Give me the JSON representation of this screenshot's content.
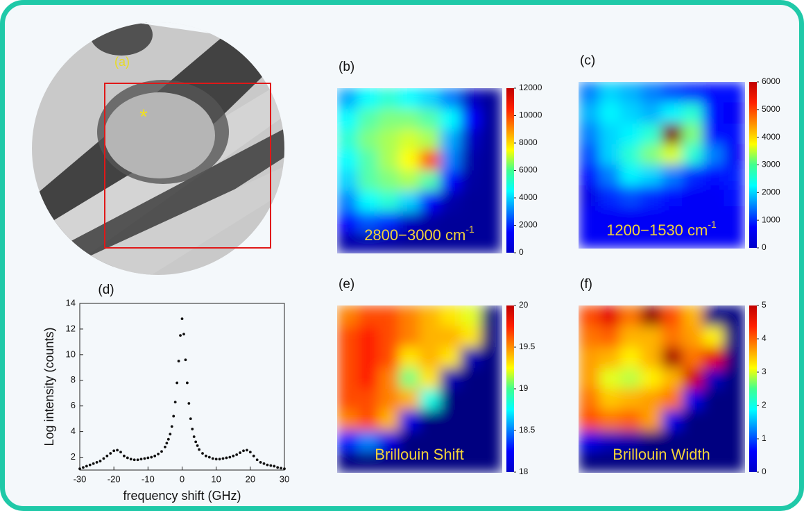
{
  "image_panel": {
    "label": "(a)",
    "marker": "*"
  },
  "chart_data": [
    {
      "type": "scatter",
      "label": "(d)",
      "xlabel": "frequency shift (GHz)",
      "ylabel": "Log intensity (counts)",
      "xlim": [
        -30,
        30
      ],
      "ylim": [
        1,
        14
      ],
      "xticks": [
        -30,
        -20,
        -10,
        0,
        10,
        20,
        30
      ],
      "yticks": [
        2,
        4,
        6,
        8,
        10,
        12,
        14
      ],
      "color": "#111111",
      "x": [
        -30,
        -29,
        -28,
        -27,
        -26,
        -25,
        -24,
        -23,
        -22,
        -21,
        -20,
        -19,
        -18,
        -17,
        -16,
        -15,
        -14,
        -13,
        -12,
        -11,
        -10,
        -9,
        -8,
        -7,
        -6,
        -5,
        -4.5,
        -4,
        -3.5,
        -3,
        -2.5,
        -2,
        -1.5,
        -1,
        -0.5,
        0,
        0.5,
        1,
        1.5,
        2,
        2.5,
        3,
        3.5,
        4,
        4.5,
        5,
        6,
        7,
        8,
        9,
        10,
        11,
        12,
        13,
        14,
        15,
        16,
        17,
        18,
        19,
        20,
        21,
        22,
        23,
        24,
        25,
        26,
        27,
        28,
        29,
        30
      ],
      "values": [
        1.1,
        1.2,
        1.3,
        1.4,
        1.5,
        1.6,
        1.7,
        1.9,
        2.1,
        2.3,
        2.5,
        2.55,
        2.4,
        2.1,
        1.95,
        1.85,
        1.8,
        1.8,
        1.85,
        1.9,
        1.95,
        2.0,
        2.1,
        2.25,
        2.45,
        2.8,
        3.1,
        3.4,
        3.8,
        4.4,
        5.2,
        6.3,
        7.8,
        9.5,
        11.5,
        12.8,
        11.6,
        9.6,
        7.8,
        6.2,
        5.0,
        4.2,
        3.6,
        3.2,
        2.9,
        2.6,
        2.3,
        2.1,
        2.0,
        1.9,
        1.85,
        1.85,
        1.9,
        1.95,
        2.0,
        2.1,
        2.2,
        2.35,
        2.5,
        2.55,
        2.4,
        2.1,
        1.8,
        1.6,
        1.5,
        1.4,
        1.35,
        1.3,
        1.2,
        1.15,
        1.1
      ]
    },
    {
      "type": "heatmap",
      "label": "(b)",
      "annotation": "2800−3000 cm",
      "annotation_sup": "-1",
      "clim": [
        0,
        12000
      ],
      "colorbar_ticks": [
        0,
        2000,
        4000,
        6000,
        8000,
        10000,
        12000
      ],
      "values": [
        [
          3500,
          4500,
          5000,
          4500,
          4000,
          3000,
          800,
          300
        ],
        [
          4500,
          5500,
          6000,
          6000,
          5500,
          4500,
          1500,
          300
        ],
        [
          5000,
          6000,
          6500,
          7000,
          6500,
          3500,
          800,
          300
        ],
        [
          4500,
          5500,
          6500,
          7500,
          9500,
          3000,
          500,
          300
        ],
        [
          4000,
          5500,
          6000,
          6500,
          5500,
          1500,
          400,
          300
        ],
        [
          3000,
          4500,
          5000,
          4000,
          1500,
          500,
          300,
          300
        ],
        [
          1500,
          2500,
          2000,
          800,
          400,
          300,
          300,
          300
        ],
        [
          500,
          500,
          400,
          300,
          300,
          300,
          300,
          300
        ]
      ]
    },
    {
      "type": "heatmap",
      "label": "(c)",
      "annotation": "1200−1530 cm",
      "annotation_sup": "-1",
      "clim": [
        0,
        6000
      ],
      "colorbar_ticks": [
        0,
        1000,
        2000,
        3000,
        4000,
        5000,
        6000
      ],
      "values": [
        [
          1500,
          2000,
          1800,
          1500,
          1200,
          1000,
          800,
          800
        ],
        [
          1800,
          2200,
          2000,
          1800,
          2200,
          2500,
          800,
          700
        ],
        [
          1500,
          2000,
          2200,
          2500,
          6000,
          3000,
          800,
          800
        ],
        [
          1200,
          2000,
          2500,
          3000,
          3500,
          2500,
          1500,
          700
        ],
        [
          800,
          1500,
          2200,
          2000,
          1500,
          1000,
          800,
          900
        ],
        [
          600,
          1000,
          1200,
          1000,
          800,
          700,
          700,
          800
        ],
        [
          700,
          700,
          700,
          700,
          700,
          700,
          700,
          700
        ],
        [
          700,
          700,
          700,
          700,
          700,
          700,
          700,
          700
        ]
      ]
    },
    {
      "type": "heatmap",
      "label": "(e)",
      "annotation": "Brillouin Shift",
      "clim": [
        18,
        20
      ],
      "colorbar_ticks": [
        18,
        18.5,
        19,
        19.5,
        20
      ],
      "values": [
        [
          19.5,
          19.6,
          19.6,
          19.5,
          19.4,
          19.3,
          19.2,
          18.0
        ],
        [
          19.6,
          19.7,
          19.6,
          19.5,
          19.4,
          19.4,
          19.3,
          18.0
        ],
        [
          19.6,
          19.7,
          19.6,
          19.3,
          19.4,
          19.3,
          18.1,
          18.0
        ],
        [
          19.6,
          19.7,
          19.5,
          19.0,
          19.3,
          18.1,
          18.0,
          18.0
        ],
        [
          19.6,
          19.6,
          19.5,
          19.4,
          18.8,
          18.0,
          18.0,
          18.0
        ],
        [
          19.5,
          19.6,
          19.4,
          18.2,
          18.0,
          18.0,
          18.0,
          18.0
        ],
        [
          18.3,
          18.5,
          18.2,
          18.0,
          18.0,
          18.0,
          18.0,
          18.0
        ],
        [
          18.0,
          18.0,
          18.0,
          18.0,
          18.0,
          18.0,
          18.0,
          18.0
        ]
      ]
    },
    {
      "type": "heatmap",
      "label": "(f)",
      "annotation": "Brillouin Width",
      "clim": [
        0,
        5
      ],
      "colorbar_ticks": [
        0,
        1,
        2,
        3,
        4,
        5
      ],
      "values": [
        [
          4.0,
          4.5,
          3.8,
          4.9,
          4.0,
          3.5,
          0,
          0
        ],
        [
          3.8,
          3.9,
          3.5,
          3.5,
          3.8,
          3.6,
          3.2,
          0
        ],
        [
          3.6,
          3.5,
          3.2,
          3.5,
          4.8,
          3.8,
          4.5,
          0
        ],
        [
          3.6,
          3.0,
          2.8,
          3.2,
          3.5,
          4.6,
          0.3,
          0
        ],
        [
          3.8,
          3.4,
          3.5,
          3.6,
          3.8,
          0.5,
          0,
          0
        ],
        [
          4.0,
          3.8,
          3.9,
          3.6,
          0.5,
          0,
          0,
          0
        ],
        [
          0.5,
          0.3,
          0.2,
          0,
          0,
          0,
          0,
          0
        ],
        [
          0,
          0,
          0,
          0,
          0,
          0,
          0,
          0
        ]
      ]
    }
  ]
}
